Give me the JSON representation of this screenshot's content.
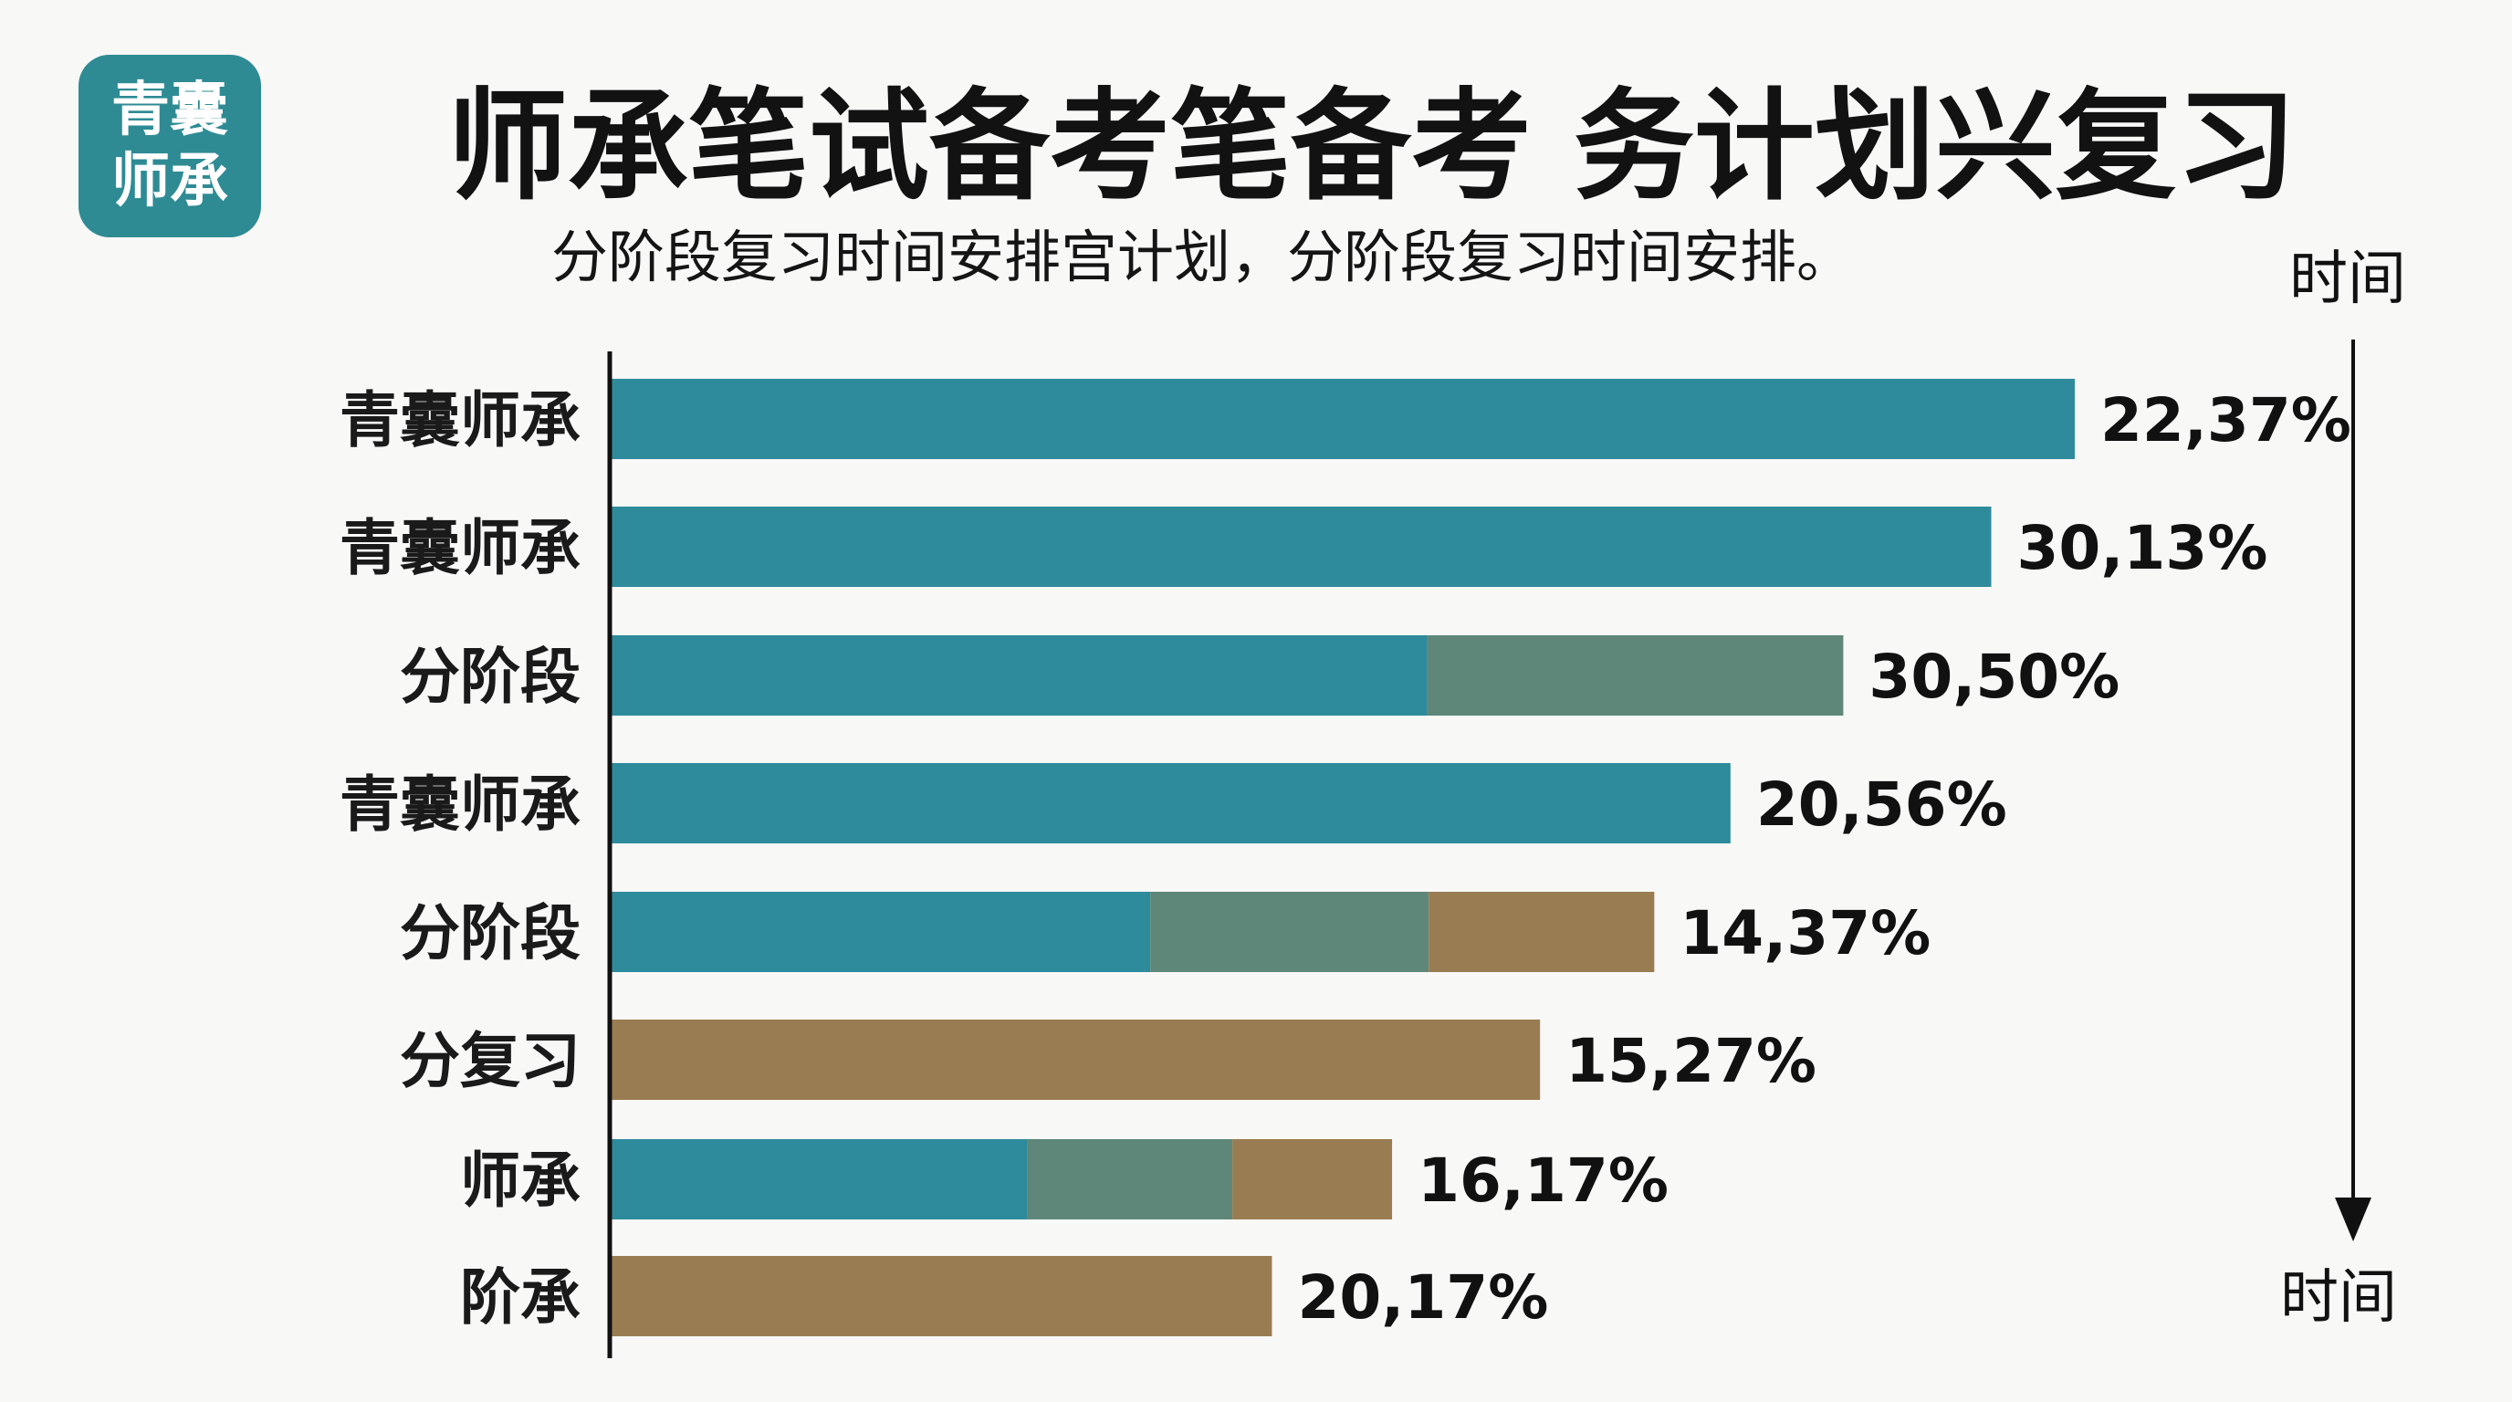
{
  "logo": {
    "line1": "青囊",
    "line2": "师承"
  },
  "title": "师承笔试备考笔备考 务计划兴复习",
  "subtitle": "分阶段复习时间安排宫计划，分阶段复习时间安排。",
  "time_axis": {
    "top_label": "时间",
    "bottom_label": "时间"
  },
  "colors": {
    "teal": "#2e8b9c",
    "grey_green": "#5e8779",
    "tan": "#9a7c52",
    "logo_bg": "#2e8b94",
    "axis": "#111111"
  },
  "chart_data": {
    "type": "bar",
    "orientation": "horizontal",
    "stacked": true,
    "title": "师承笔试备考笔备考 务计划兴复习",
    "subtitle": "分阶段复习时间安排宫计划，分阶段复习时间安排。",
    "categories": [
      "青囊师承",
      "青囊师承",
      "分阶段",
      "青囊师承",
      "分阶段",
      "分复习",
      "师承",
      "阶承"
    ],
    "value_labels": [
      "22,37%",
      "30,13%",
      "30,50%",
      "20,56%",
      "14,37%",
      "15,27%",
      "16,17%",
      "20,17%"
    ],
    "series": [
      {
        "color": "#2e8b9c",
        "values": [
          100,
          94.3,
          55.8,
          76.5,
          36.9,
          0,
          28.5,
          0
        ]
      },
      {
        "color": "#5e8779",
        "values": [
          0,
          0,
          28.4,
          0,
          19.0,
          0,
          14.0,
          0
        ]
      },
      {
        "color": "#9a7c52",
        "values": [
          0,
          0,
          0,
          0,
          15.4,
          63.5,
          10.9,
          45.2
        ]
      }
    ],
    "xlim": [
      0,
      100
    ],
    "grid": false,
    "legend": "none"
  }
}
